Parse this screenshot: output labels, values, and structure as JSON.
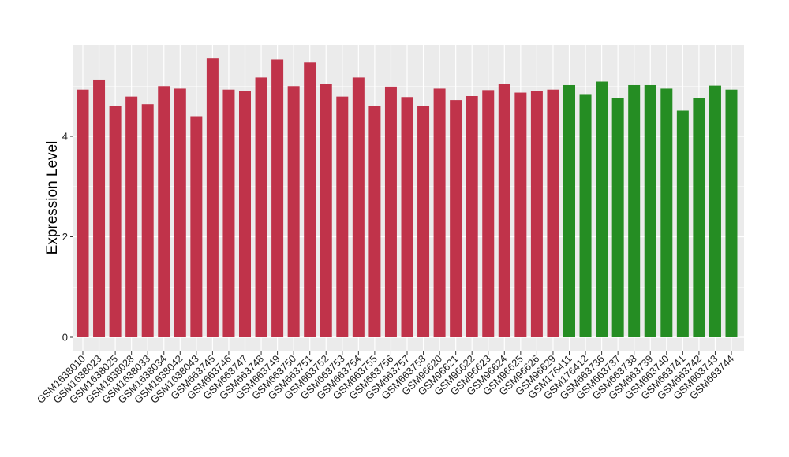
{
  "chart_data": {
    "type": "bar",
    "title": "",
    "xlabel": "",
    "ylabel": "Expression Level",
    "ylim": [
      0,
      5.8
    ],
    "yticks": [
      0,
      2,
      4
    ],
    "grid": true,
    "legend": "none",
    "colors": {
      "red": "#c0334a",
      "green": "#258d23",
      "panel": "#ebebeb",
      "grid": "#ffffff"
    },
    "categories": [
      "GSM1638010",
      "GSM1638023",
      "GSM1638025",
      "GSM1638028",
      "GSM1638033",
      "GSM1638034",
      "GSM1638042",
      "GSM1638043",
      "GSM663745",
      "GSM663746",
      "GSM663747",
      "GSM663748",
      "GSM663749",
      "GSM663750",
      "GSM663751",
      "GSM663752",
      "GSM663753",
      "GSM663754",
      "GSM663755",
      "GSM663756",
      "GSM663757",
      "GSM663758",
      "GSM96620",
      "GSM96621",
      "GSM96622",
      "GSM96623",
      "GSM96624",
      "GSM96625",
      "GSM96626",
      "GSM96629",
      "GSM176411",
      "GSM176412",
      "GSM663736",
      "GSM663737",
      "GSM663738",
      "GSM663739",
      "GSM663740",
      "GSM663741",
      "GSM663742",
      "GSM663743",
      "GSM663744"
    ],
    "values": [
      4.93,
      5.13,
      4.6,
      4.79,
      4.64,
      5.0,
      4.95,
      4.4,
      5.55,
      4.93,
      4.9,
      5.17,
      5.53,
      5.0,
      5.47,
      5.05,
      4.79,
      5.17,
      4.61,
      4.99,
      4.78,
      4.61,
      4.95,
      4.72,
      4.8,
      4.92,
      5.04,
      4.87,
      4.9,
      4.93,
      5.02,
      4.84,
      5.09,
      4.76,
      5.02,
      5.02,
      4.95,
      4.51,
      4.76,
      5.01,
      4.93
    ],
    "bar_colors": [
      "red",
      "red",
      "red",
      "red",
      "red",
      "red",
      "red",
      "red",
      "red",
      "red",
      "red",
      "red",
      "red",
      "red",
      "red",
      "red",
      "red",
      "red",
      "red",
      "red",
      "red",
      "red",
      "red",
      "red",
      "red",
      "red",
      "red",
      "red",
      "red",
      "red",
      "green",
      "green",
      "green",
      "green",
      "green",
      "green",
      "green",
      "green",
      "green",
      "green",
      "green"
    ]
  }
}
